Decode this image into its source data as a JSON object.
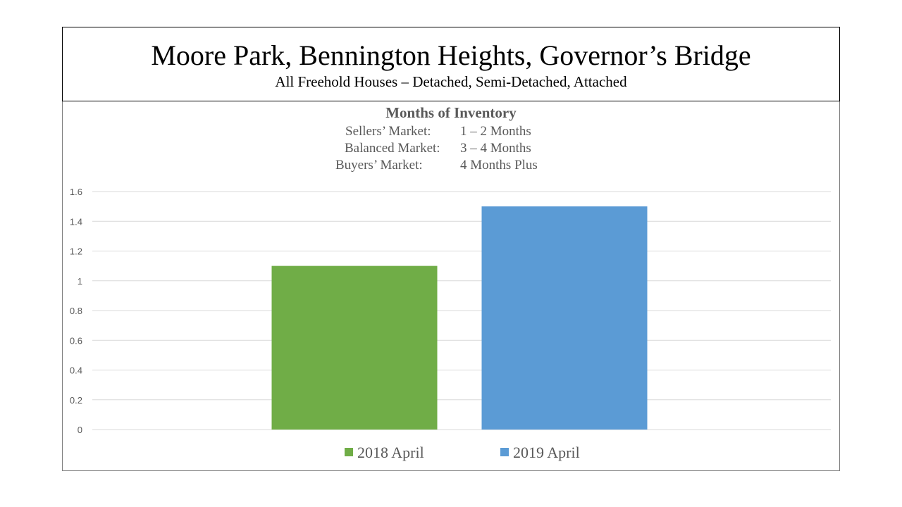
{
  "header": {
    "title": "Moore Park, Bennington Heights, Governor’s Bridge",
    "subtitle": "All Freehold Houses – Detached, Semi-Detached, Attached"
  },
  "chart_data": {
    "type": "bar",
    "title": "Months of Inventory",
    "market_notes": [
      {
        "label": "Sellers’ Market:",
        "value": "1 – 2 Months"
      },
      {
        "label": "Balanced Market:",
        "value": "3 – 4 Months"
      },
      {
        "label": "Buyers’ Market:",
        "value": "4 Months Plus"
      }
    ],
    "categories": [
      ""
    ],
    "series": [
      {
        "name": "2018 April",
        "values": [
          1.1
        ],
        "color": "#70ad47"
      },
      {
        "name": "2019 April",
        "values": [
          1.5
        ],
        "color": "#5b9bd5"
      }
    ],
    "ylim": [
      0,
      1.6
    ],
    "yticks": [
      "0",
      "0.2",
      "0.4",
      "0.6",
      "0.8",
      "1",
      "1.2",
      "1.4",
      "1.6"
    ],
    "xlabel": "",
    "ylabel": "",
    "grid": true,
    "legend": "bottom"
  }
}
